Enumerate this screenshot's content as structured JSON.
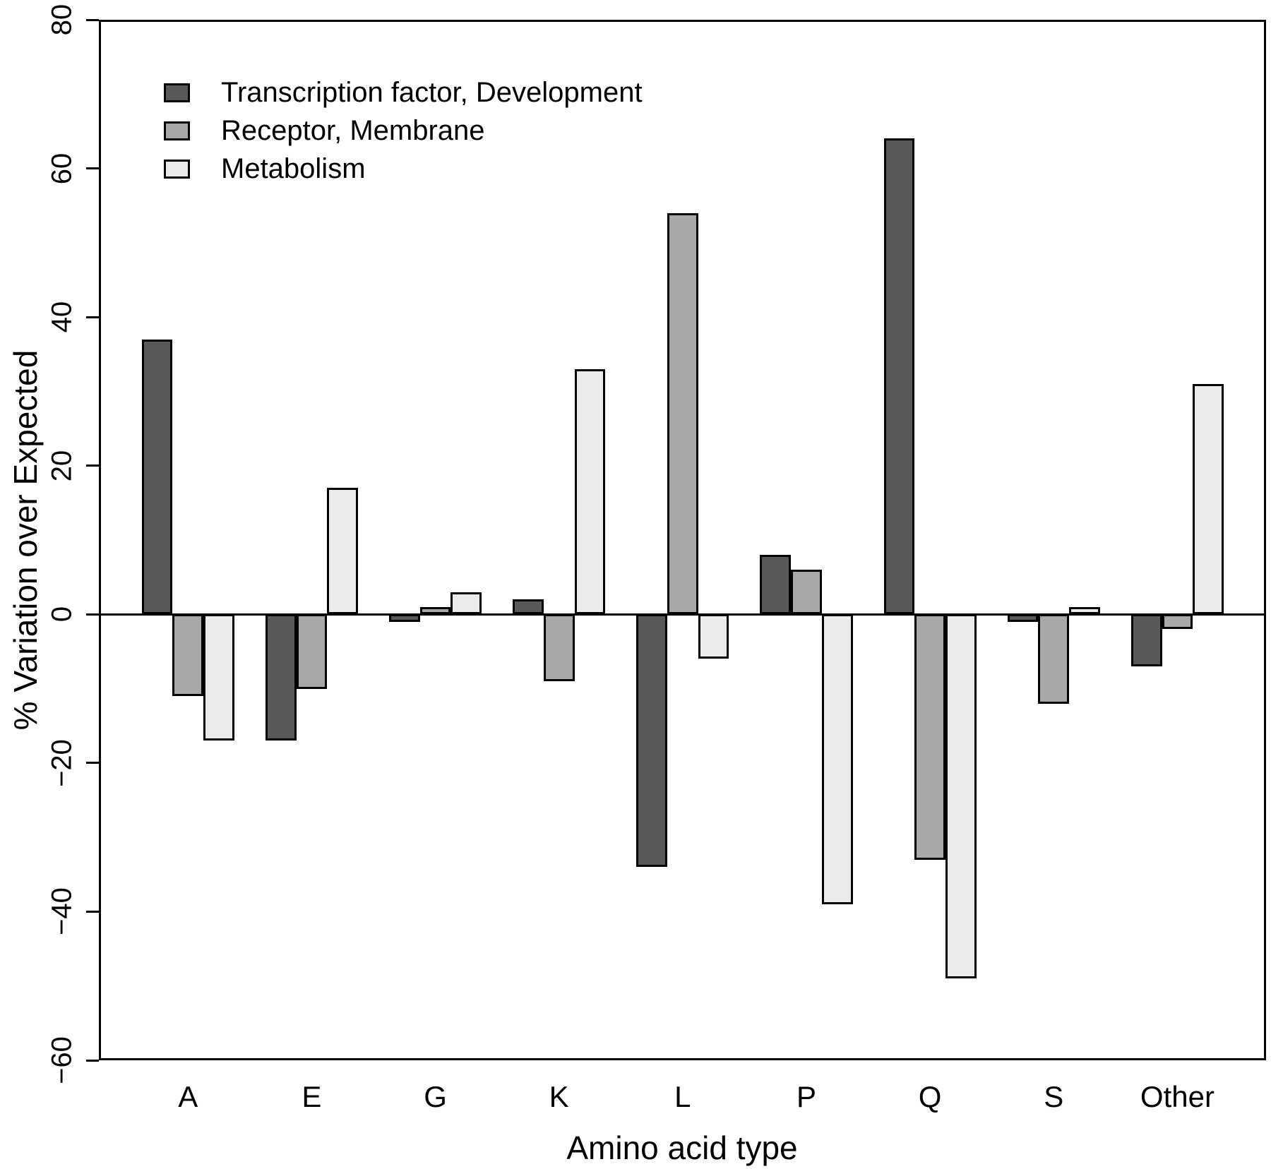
{
  "chart_data": {
    "type": "bar",
    "title": "",
    "xlabel": "Amino acid type",
    "ylabel": "% Variation over Expected",
    "categories": [
      "A",
      "E",
      "G",
      "K",
      "L",
      "P",
      "Q",
      "S",
      "Other"
    ],
    "series": [
      {
        "name": "Transcription factor, Development",
        "color": "#595959",
        "values": [
          37,
          -17,
          -1,
          2,
          -34,
          8,
          64,
          -1,
          -7
        ]
      },
      {
        "name": "Receptor, Membrane",
        "color": "#a8a8a8",
        "values": [
          -11,
          -10,
          1,
          -9,
          54,
          6,
          -33,
          -12,
          -2
        ]
      },
      {
        "name": "Metabolism",
        "color": "#ebebeb",
        "values": [
          -17,
          17,
          3,
          33,
          -6,
          -39,
          -49,
          1,
          31
        ]
      }
    ],
    "ylim": [
      -60,
      80
    ],
    "yticks": [
      80,
      60,
      40,
      20,
      0,
      -20,
      -40,
      -60
    ],
    "grid": false,
    "zero_line": true,
    "legend_position": "top-left",
    "bar_border_color": "#000000",
    "frame_color": "#000000",
    "background_color": "#ffffff"
  }
}
